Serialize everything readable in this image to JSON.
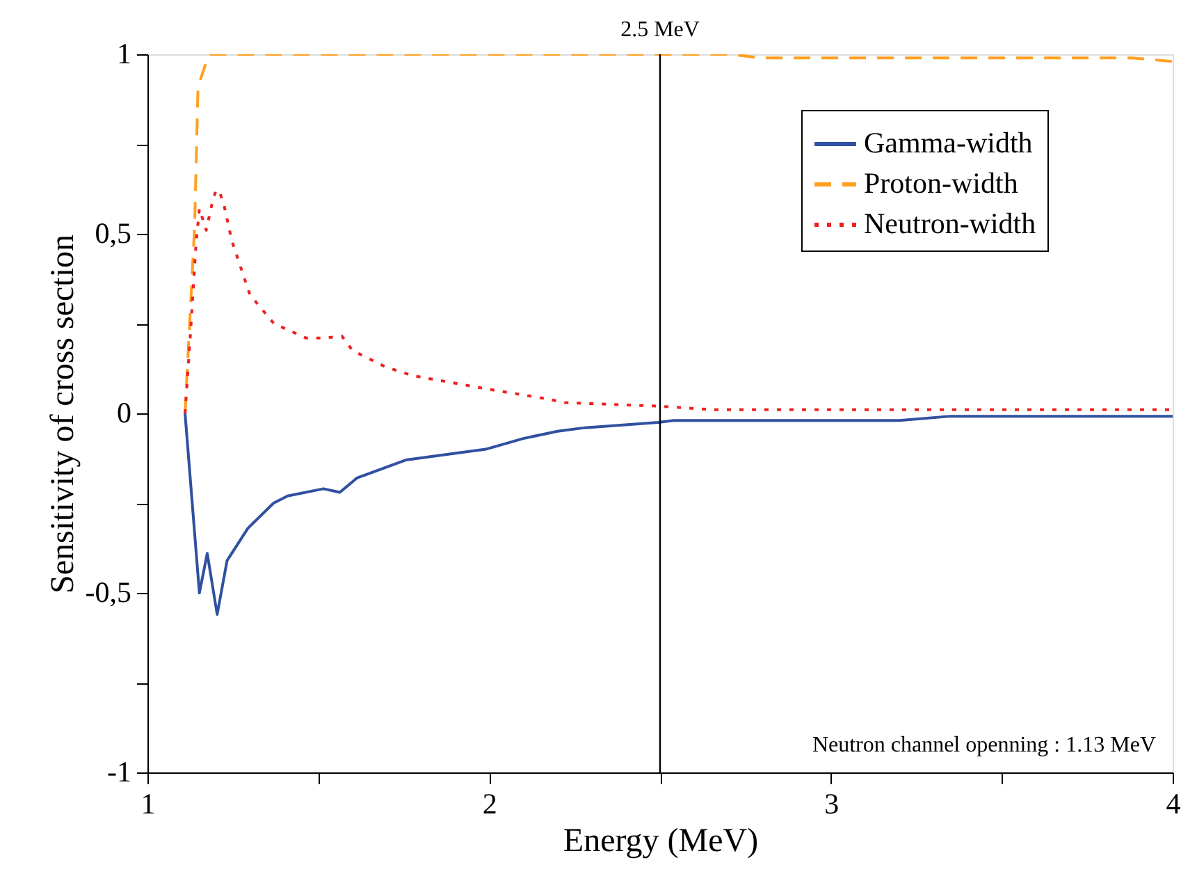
{
  "chart_data": {
    "type": "line",
    "xlabel": "Energy (MeV)",
    "ylabel": "Sensitivity of cross section",
    "xlim": [
      1,
      4
    ],
    "ylim": [
      -1,
      1
    ],
    "xticks": [
      1,
      {
        "value": 1.5,
        "label": null
      },
      2,
      {
        "value": 2.5,
        "label": null
      },
      3,
      {
        "value": 3.5,
        "label": null
      },
      4
    ],
    "yticks": [
      -1,
      {
        "value": -0.75,
        "label": null
      },
      {
        "value": -0.5,
        "label": "-0,5"
      },
      {
        "value": -0.25,
        "label": null
      },
      0,
      {
        "value": 0.25,
        "label": null
      },
      {
        "value": 0.5,
        "label": "0,5"
      },
      {
        "value": 0.75,
        "label": null
      },
      1
    ],
    "grid": false,
    "legend": "top right",
    "marker": "none",
    "series": [
      {
        "name": "Gamma-width",
        "color": "#3050a0",
        "line_style": "solid",
        "x": [
          1.11,
          1.152,
          1.175,
          1.204,
          1.233,
          1.294,
          1.369,
          1.41,
          1.515,
          1.563,
          1.613,
          1.756,
          1.99,
          2.1,
          2.2,
          2.28,
          2.495,
          2.54,
          3.2,
          3.35,
          4
        ],
        "values": [
          0,
          -0.5,
          -0.39,
          -0.56,
          -0.41,
          -0.32,
          -0.25,
          -0.23,
          -0.21,
          -0.22,
          -0.18,
          -0.13,
          -0.1,
          -0.07,
          -0.05,
          -0.04,
          -0.025,
          -0.02,
          -0.02,
          -0.008,
          -0.008
        ]
      },
      {
        "name": "Proton-width",
        "color": "#ffa020",
        "line_style": "dashed",
        "x": [
          1.11,
          1.138,
          1.148,
          1.18,
          2.71,
          2.79,
          3.88,
          4
        ],
        "values": [
          0,
          0.52,
          0.91,
          1,
          1,
          0.99,
          0.99,
          0.98
        ]
      },
      {
        "name": "Neutron-width",
        "color": "#ee2020",
        "line_style": "dotted",
        "x": [
          1.11,
          1.125,
          1.142,
          1.152,
          1.172,
          1.188,
          1.2,
          1.21,
          1.224,
          1.247,
          1.3,
          1.37,
          1.464,
          1.518,
          1.569,
          1.6,
          1.695,
          1.776,
          2.006,
          2.17,
          2.22,
          2.495,
          2.66,
          4
        ],
        "values": [
          0,
          0.21,
          0.47,
          0.57,
          0.51,
          0.58,
          0.62,
          0.62,
          0.58,
          0.48,
          0.33,
          0.25,
          0.21,
          0.21,
          0.215,
          0.175,
          0.13,
          0.105,
          0.066,
          0.04,
          0.03,
          0.02,
          0.01,
          0.01
        ]
      }
    ],
    "ref_lines": [
      {
        "axis": "x",
        "value": 2.5,
        "label": "2.5 MeV",
        "color": "#000000"
      }
    ],
    "annotations": [
      "Neutron channel openning : 1.13 MeV"
    ]
  }
}
